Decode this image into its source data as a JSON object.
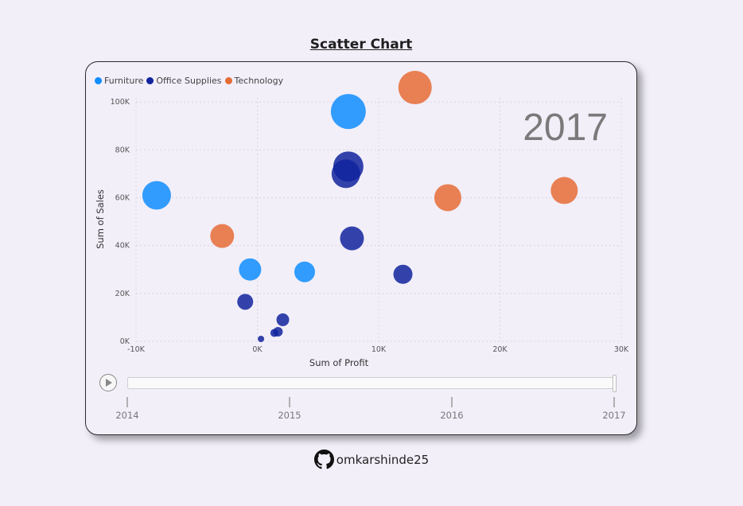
{
  "page": {
    "title": "Scatter Chart",
    "footer_user": "omkarshinde25"
  },
  "chart_data": {
    "type": "scatter",
    "title": "",
    "xlabel": "Sum of Profit",
    "ylabel": "Sum of Sales",
    "xlim": [
      -10000,
      30000
    ],
    "ylim": [
      0,
      110000
    ],
    "x_ticks": [
      -10000,
      0,
      10000,
      20000,
      30000
    ],
    "x_tick_labels": [
      "-10K",
      "0K",
      "10K",
      "20K",
      "30K"
    ],
    "y_ticks": [
      0,
      20000,
      40000,
      60000,
      80000,
      100000
    ],
    "y_tick_labels": [
      "0K",
      "20K",
      "40K",
      "60K",
      "80K",
      "100K"
    ],
    "grid": true,
    "legend": "top-left",
    "play_axis_label": "2017",
    "series": [
      {
        "name": "Furniture",
        "color": "#118dff",
        "points": [
          {
            "x": -8300,
            "y": 61000,
            "size": 18
          },
          {
            "x": 7500,
            "y": 96000,
            "size": 22
          },
          {
            "x": -600,
            "y": 30000,
            "size": 14
          },
          {
            "x": 3900,
            "y": 29000,
            "size": 13
          }
        ]
      },
      {
        "name": "Office Supplies",
        "color": "#12239e",
        "points": [
          {
            "x": 7500,
            "y": 73000,
            "size": 19
          },
          {
            "x": 7300,
            "y": 70000,
            "size": 18
          },
          {
            "x": 7800,
            "y": 43000,
            "size": 15
          },
          {
            "x": 12000,
            "y": 28000,
            "size": 12
          },
          {
            "x": -1000,
            "y": 16500,
            "size": 10
          },
          {
            "x": 2100,
            "y": 9000,
            "size": 8
          },
          {
            "x": 1700,
            "y": 4000,
            "size": 6
          },
          {
            "x": 1400,
            "y": 3500,
            "size": 5
          },
          {
            "x": 300,
            "y": 1000,
            "size": 4
          }
        ]
      },
      {
        "name": "Technology",
        "color": "#e66c37",
        "points": [
          {
            "x": 13000,
            "y": 106000,
            "size": 21
          },
          {
            "x": -2900,
            "y": 44000,
            "size": 15
          },
          {
            "x": 15700,
            "y": 60000,
            "size": 17
          },
          {
            "x": 25300,
            "y": 63000,
            "size": 17
          }
        ]
      }
    ],
    "timeline": {
      "labels": [
        "2014",
        "2015",
        "2016",
        "2017"
      ],
      "current": "2017"
    }
  }
}
